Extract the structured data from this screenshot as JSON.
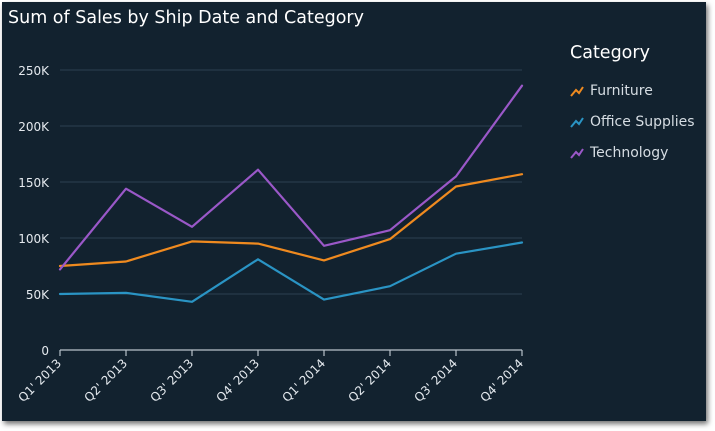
{
  "chart_data": {
    "type": "line",
    "title": "Sum of Sales by Ship Date and Category",
    "categories": [
      "Q1' 2013",
      "Q2' 2013",
      "Q3' 2013",
      "Q4' 2013",
      "Q1' 2014",
      "Q2' 2014",
      "Q3' 2014",
      "Q4' 2014"
    ],
    "y_ticks": [
      "0",
      "50K",
      "100K",
      "150K",
      "200K",
      "250K"
    ],
    "ylim": [
      0,
      250000
    ],
    "grid": true,
    "legend_title": "Category",
    "legend_position": "right",
    "series": [
      {
        "name": "Furniture",
        "color": "#ef8a1f",
        "values": [
          75000,
          79000,
          97000,
          95000,
          80000,
          99000,
          146000,
          157000
        ]
      },
      {
        "name": "Office Supplies",
        "color": "#2a94c4",
        "values": [
          50000,
          51000,
          43000,
          81000,
          45000,
          57000,
          86000,
          96000
        ]
      },
      {
        "name": "Technology",
        "color": "#9a58c8",
        "values": [
          72000,
          144000,
          110000,
          161000,
          93000,
          107000,
          155000,
          236000
        ]
      }
    ]
  }
}
